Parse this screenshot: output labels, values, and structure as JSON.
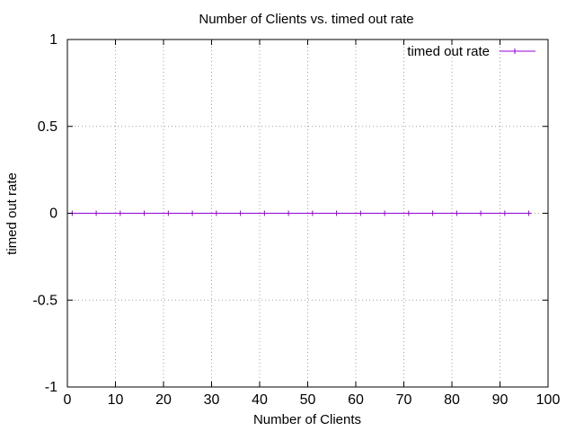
{
  "chart_data": {
    "type": "line",
    "title": "Number of Clients vs. timed out rate",
    "xlabel": "Number of Clients",
    "ylabel": "timed out rate",
    "xlim": [
      0,
      100
    ],
    "ylim": [
      -1,
      1
    ],
    "x_ticks": [
      "0",
      "10",
      "20",
      "30",
      "40",
      "50",
      "60",
      "70",
      "80",
      "90",
      "100"
    ],
    "y_ticks": [
      "-1",
      "-0.5",
      "0",
      "0.5",
      "1"
    ],
    "grid": true,
    "legend_position": "top-right",
    "series": [
      {
        "name": "timed out rate",
        "color": "#9400d3",
        "marker": "plus",
        "x": [
          1,
          6,
          11,
          16,
          21,
          26,
          31,
          36,
          41,
          46,
          51,
          56,
          61,
          66,
          71,
          76,
          81,
          86,
          91,
          96
        ],
        "y": [
          0,
          0,
          0,
          0,
          0,
          0,
          0,
          0,
          0,
          0,
          0,
          0,
          0,
          0,
          0,
          0,
          0,
          0,
          0,
          0
        ]
      }
    ]
  }
}
